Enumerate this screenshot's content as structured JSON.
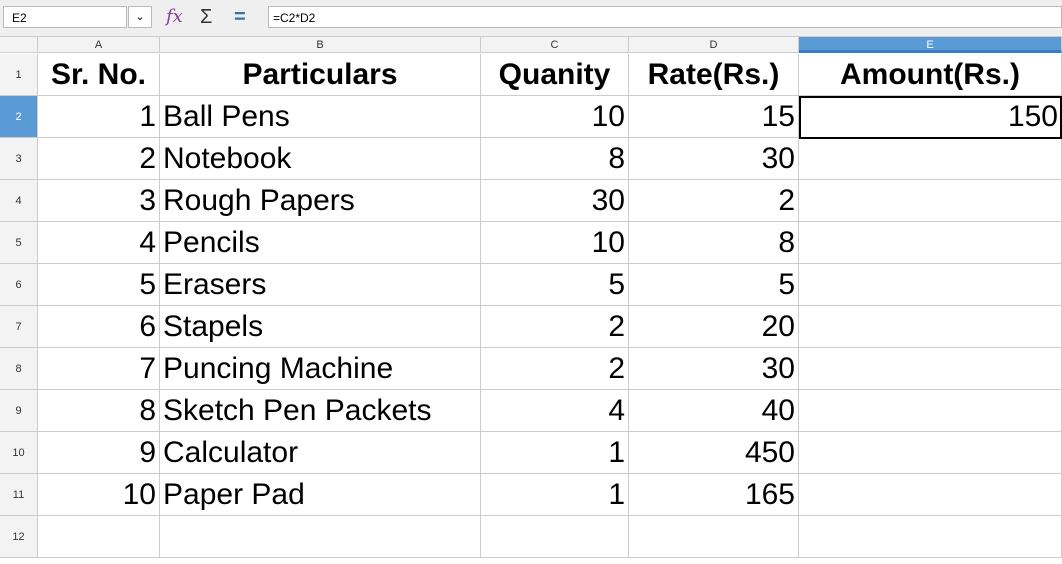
{
  "toolbar": {
    "name_box": "E2",
    "formula": "=C2*D2",
    "icons": [
      "function-wizard-icon",
      "sum-icon",
      "equals-icon"
    ]
  },
  "columns": [
    "A",
    "B",
    "C",
    "D",
    "E"
  ],
  "rows": [
    "1",
    "2",
    "3",
    "4",
    "5",
    "6",
    "7",
    "8",
    "9",
    "10",
    "11",
    "12"
  ],
  "selected_cell": "E2",
  "headers": [
    "Sr. No.",
    "Particulars",
    "Quanity",
    "Rate(Rs.)",
    "Amount(Rs.)"
  ],
  "data": [
    [
      "1",
      "Ball Pens",
      "10",
      "15",
      "150"
    ],
    [
      "2",
      "Notebook",
      "8",
      "30",
      ""
    ],
    [
      "3",
      "Rough Papers",
      "30",
      "2",
      ""
    ],
    [
      "4",
      "Pencils",
      "10",
      "8",
      ""
    ],
    [
      "5",
      "Erasers",
      "5",
      "5",
      ""
    ],
    [
      "6",
      "Stapels",
      "2",
      "20",
      ""
    ],
    [
      "7",
      "Puncing Machine",
      "2",
      "30",
      ""
    ],
    [
      "8",
      "Sketch Pen Packets",
      "4",
      "40",
      ""
    ],
    [
      "9",
      "Calculator",
      "1",
      "450",
      ""
    ],
    [
      "10",
      "Paper Pad",
      "1",
      "165",
      ""
    ]
  ]
}
